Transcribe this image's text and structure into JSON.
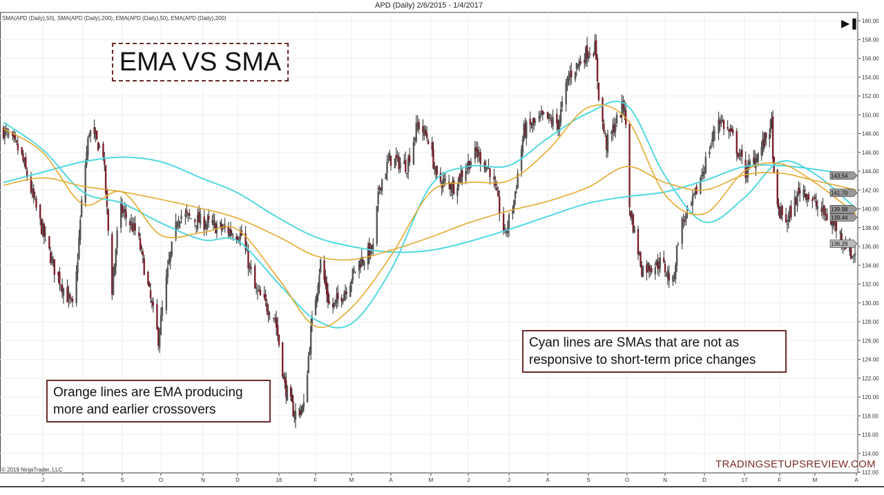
{
  "window_title": "APD (Daily)  2/6/2015 - 1/4/2017",
  "indicator_legend": "SMA(APD (Daily),50), SMA(APD (Daily),200), EMA(APD (Daily),50), EMA(APD (Daily),200)",
  "annotations": {
    "title": "EMA VS SMA",
    "orange_note": "Orange lines are EMA producing more and earlier crossovers",
    "cyan_note": "Cyan lines are SMAs that are not as responsive to short-term price changes"
  },
  "watermark": "TRADINGSETUPSREVIEW.COM",
  "copyright": "© 2019 NinjaTrader, LLC",
  "scroll_end_icon": "skip-to-end-icon",
  "colors": {
    "sma": "#4fd8e0",
    "ema": "#e3a92e",
    "up_candle": "#555555",
    "down_candle": "#7a1f2b",
    "wick": "#222222",
    "annotation_border": "#6b2a2a"
  },
  "chart_data": {
    "type": "candlestick",
    "symbol": "APD",
    "ylim": [
      112,
      160
    ],
    "y_ticks": [
      112,
      114,
      116,
      118,
      120,
      122,
      124,
      126,
      128,
      130,
      132,
      134,
      136,
      138,
      140,
      142,
      144,
      146,
      148,
      150,
      152,
      154,
      156,
      158,
      160
    ],
    "x_ticks": [
      {
        "label": "J",
        "date": "2015-07-01"
      },
      {
        "label": "A",
        "date": "2015-08-01"
      },
      {
        "label": "S",
        "date": "2015-09-01"
      },
      {
        "label": "O",
        "date": "2015-10-01"
      },
      {
        "label": "N",
        "date": "2015-11-01"
      },
      {
        "label": "D",
        "date": "2015-12-01"
      },
      {
        "label": "16",
        "date": "2016-01-01"
      },
      {
        "label": "F",
        "date": "2016-02-01"
      },
      {
        "label": "M",
        "date": "2016-03-01"
      },
      {
        "label": "A",
        "date": "2016-04-01"
      },
      {
        "label": "M",
        "date": "2016-05-01"
      },
      {
        "label": "J",
        "date": "2016-06-01"
      },
      {
        "label": "J",
        "date": "2016-07-01"
      },
      {
        "label": "A",
        "date": "2016-08-01"
      },
      {
        "label": "S",
        "date": "2016-09-01"
      },
      {
        "label": "O",
        "date": "2016-10-01"
      },
      {
        "label": "N",
        "date": "2016-11-01"
      },
      {
        "label": "D",
        "date": "2016-12-01"
      },
      {
        "label": "17",
        "date": "2017-01-01"
      },
      {
        "label": "F",
        "date": "2017-02-01"
      },
      {
        "label": "M",
        "date": "2017-03-01"
      },
      {
        "label": "A",
        "date": "2017-04-01"
      }
    ],
    "price_path": [
      [
        "2015-06-01",
        148.3
      ],
      [
        "2015-06-14",
        146
      ],
      [
        "2015-06-30",
        138
      ],
      [
        "2015-07-10",
        133.6
      ],
      [
        "2015-07-25",
        129.2
      ],
      [
        "2015-08-01",
        142.4
      ],
      [
        "2015-08-06",
        148.3
      ],
      [
        "2015-08-17",
        146
      ],
      [
        "2015-08-24",
        131.4
      ],
      [
        "2015-08-30",
        140.2
      ],
      [
        "2015-09-13",
        137.2
      ],
      [
        "2015-09-29",
        126.2
      ],
      [
        "2015-10-07",
        134.3
      ],
      [
        "2015-10-14",
        139.4
      ],
      [
        "2015-10-29",
        138.7
      ],
      [
        "2015-11-15",
        138
      ],
      [
        "2015-12-04",
        137.2
      ],
      [
        "2015-12-14",
        131.4
      ],
      [
        "2015-12-29",
        128.4
      ],
      [
        "2016-01-06",
        121.1
      ],
      [
        "2016-01-14",
        118.2
      ],
      [
        "2016-01-22",
        118.9
      ],
      [
        "2016-01-28",
        127
      ],
      [
        "2016-02-05",
        134.3
      ],
      [
        "2016-02-13",
        129.2
      ],
      [
        "2016-02-25",
        131.4
      ],
      [
        "2016-03-07",
        134.3
      ],
      [
        "2016-03-18",
        135.8
      ],
      [
        "2016-03-23",
        142.4
      ],
      [
        "2016-03-31",
        145.3
      ],
      [
        "2016-04-13",
        144.6
      ],
      [
        "2016-04-21",
        149
      ],
      [
        "2016-04-29",
        147.5
      ],
      [
        "2016-05-06",
        143.1
      ],
      [
        "2016-05-20",
        142.4
      ],
      [
        "2016-06-07",
        146
      ],
      [
        "2016-06-18",
        143.9
      ],
      [
        "2016-06-28",
        137.2
      ],
      [
        "2016-07-05",
        140.9
      ],
      [
        "2016-07-13",
        148.3
      ],
      [
        "2016-07-29",
        149.7
      ],
      [
        "2016-08-09",
        149
      ],
      [
        "2016-08-17",
        154.1
      ],
      [
        "2016-08-31",
        156.7
      ],
      [
        "2016-09-06",
        157.1
      ],
      [
        "2016-09-10",
        150.5
      ],
      [
        "2016-09-15",
        146.8
      ],
      [
        "2016-09-24",
        149.7
      ],
      [
        "2016-09-29",
        151.2
      ],
      [
        "2016-10-03",
        140.2
      ],
      [
        "2016-10-13",
        133.6
      ],
      [
        "2016-10-29",
        134.3
      ],
      [
        "2016-11-07",
        132.1
      ],
      [
        "2016-11-12",
        138
      ],
      [
        "2016-11-21",
        140.2
      ],
      [
        "2016-12-01",
        144.6
      ],
      [
        "2016-12-12",
        149.7
      ],
      [
        "2016-12-23",
        147.5
      ],
      [
        "2017-01-02",
        143.9
      ],
      [
        "2017-01-14",
        146
      ],
      [
        "2017-01-25",
        149
      ],
      [
        "2017-01-28",
        140.2
      ],
      [
        "2017-02-07",
        138.7
      ],
      [
        "2017-02-18",
        142.4
      ],
      [
        "2017-03-03",
        140.2
      ],
      [
        "2017-03-17",
        138
      ],
      [
        "2017-03-29",
        135
      ],
      [
        "2017-04-01",
        135.8
      ]
    ],
    "ma_dates": [
      "2015-06-01",
      "2015-07-01",
      "2015-08-01",
      "2015-09-01",
      "2015-10-01",
      "2015-11-01",
      "2015-12-01",
      "2016-01-01",
      "2016-02-01",
      "2016-03-01",
      "2016-04-01",
      "2016-05-01",
      "2016-06-01",
      "2016-07-01",
      "2016-08-01",
      "2016-09-01",
      "2016-10-01",
      "2016-11-01",
      "2016-12-01",
      "2017-01-01",
      "2017-02-01",
      "2017-03-01",
      "2017-04-01"
    ],
    "series": [
      {
        "name": "SMA(APD (Daily),50)",
        "color": "sma",
        "last_label": "139.98",
        "values": [
          149.2,
          146.3,
          141.8,
          140.6,
          138.5,
          136.7,
          136.6,
          132,
          128.2,
          127.8,
          133.5,
          142.5,
          144.5,
          144.6,
          147.5,
          150.2,
          151.0,
          143.5,
          138.6,
          141.2,
          145.0,
          143.7,
          140.0
        ]
      },
      {
        "name": "SMA(APD (Daily),200)",
        "color": "sma",
        "last_label": "143.54",
        "values": [
          142.8,
          143.9,
          145.0,
          145.5,
          145.0,
          143.2,
          141.7,
          139.0,
          137.0,
          136.0,
          135.4,
          135.6,
          136.5,
          137.8,
          139.2,
          140.6,
          141.3,
          141.8,
          143.0,
          144.5,
          144.6,
          144.2,
          143.5
        ]
      },
      {
        "name": "EMA(APD (Daily),50)",
        "color": "ema",
        "last_label": "139.44",
        "values": [
          148.5,
          146.0,
          140.5,
          141.8,
          137.2,
          137.5,
          137.8,
          132.5,
          127.5,
          129.5,
          135.0,
          141.8,
          142.8,
          143.0,
          146.2,
          150.8,
          149.5,
          141.5,
          139.5,
          144.0,
          144.8,
          142.8,
          139.4
        ]
      },
      {
        "name": "EMA(APD (Daily),200)",
        "color": "ema",
        "last_label": "141.70",
        "values": [
          142.5,
          143.3,
          142.4,
          141.8,
          141.0,
          140.0,
          139.0,
          137.0,
          135.0,
          134.6,
          135.6,
          137.0,
          138.5,
          139.8,
          140.8,
          142.3,
          144.5,
          142.8,
          142.0,
          143.6,
          143.8,
          143.0,
          142.0
        ]
      }
    ],
    "last_price_label": "136.29"
  }
}
